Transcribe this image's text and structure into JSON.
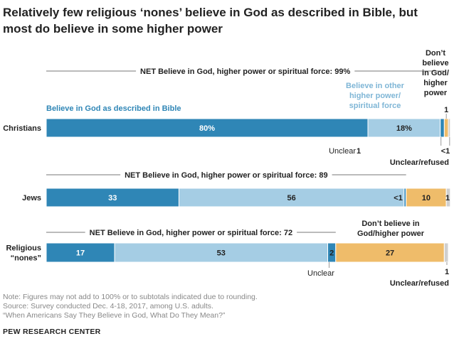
{
  "title": "Relatively few religious ‘nones’ believe in God as described in Bible, but most do believe in some higher power",
  "notes": [
    "Note: Figures may not add to 100% or to subtotals indicated due to rounding.",
    "Source: Survey conducted Dec. 4-18, 2017, among U.S. adults.",
    "“When Americans Say They Believe in God, What Do They Mean?”"
  ],
  "source_brand": "PEW RESEARCH CENTER",
  "colors": {
    "bible": "#2f86b6",
    "other": "#a5cde4",
    "unclear": "#2f86b6",
    "dont": "#efbc6a",
    "refused": "#cfcfcf",
    "text": "#222222",
    "note": "#888888"
  },
  "chart_data": {
    "type": "bar",
    "orientation": "horizontal",
    "stacked": true,
    "unit": "%",
    "categories": [
      "Christians",
      "Jews",
      "Religious “nones”"
    ],
    "category_lines": [
      [
        "Christians"
      ],
      [
        "Jews"
      ],
      [
        "Religious",
        "“nones”"
      ]
    ],
    "segments": [
      {
        "key": "bible",
        "legend": "Believe in God as described in Bible",
        "values": [
          80,
          33,
          17
        ],
        "labels": [
          "80%",
          "33",
          "17"
        ]
      },
      {
        "key": "other",
        "legend_lines": [
          "Believe in other",
          "higher power/",
          "spiritual force"
        ],
        "values": [
          18,
          56,
          53
        ],
        "labels": [
          "18%",
          "56",
          "53"
        ]
      },
      {
        "key": "unclear",
        "legend": "Unclear",
        "values": [
          1,
          0.5,
          2
        ],
        "labels": [
          "1",
          "<1",
          "2"
        ]
      },
      {
        "key": "dont",
        "legend_lines": [
          "Don’t",
          "believe",
          "in God/",
          "higher",
          "power"
        ],
        "legend_nones_lines": [
          "Don’t believe in",
          "God/higher power"
        ],
        "values": [
          1,
          10,
          27
        ],
        "labels": [
          "1",
          "10",
          "27"
        ]
      },
      {
        "key": "refused",
        "legend": "Unclear/refused",
        "values": [
          0.5,
          1,
          1
        ],
        "labels": [
          "<1",
          "1",
          "1"
        ]
      }
    ],
    "net_labels": [
      "NET Believe in God, higher power or spiritual force: 99%",
      "NET Believe in God, higher power or spiritual force: 89",
      "NET Believe in God, higher power or spiritual force: 72"
    ],
    "xlim": [
      0,
      100
    ]
  }
}
